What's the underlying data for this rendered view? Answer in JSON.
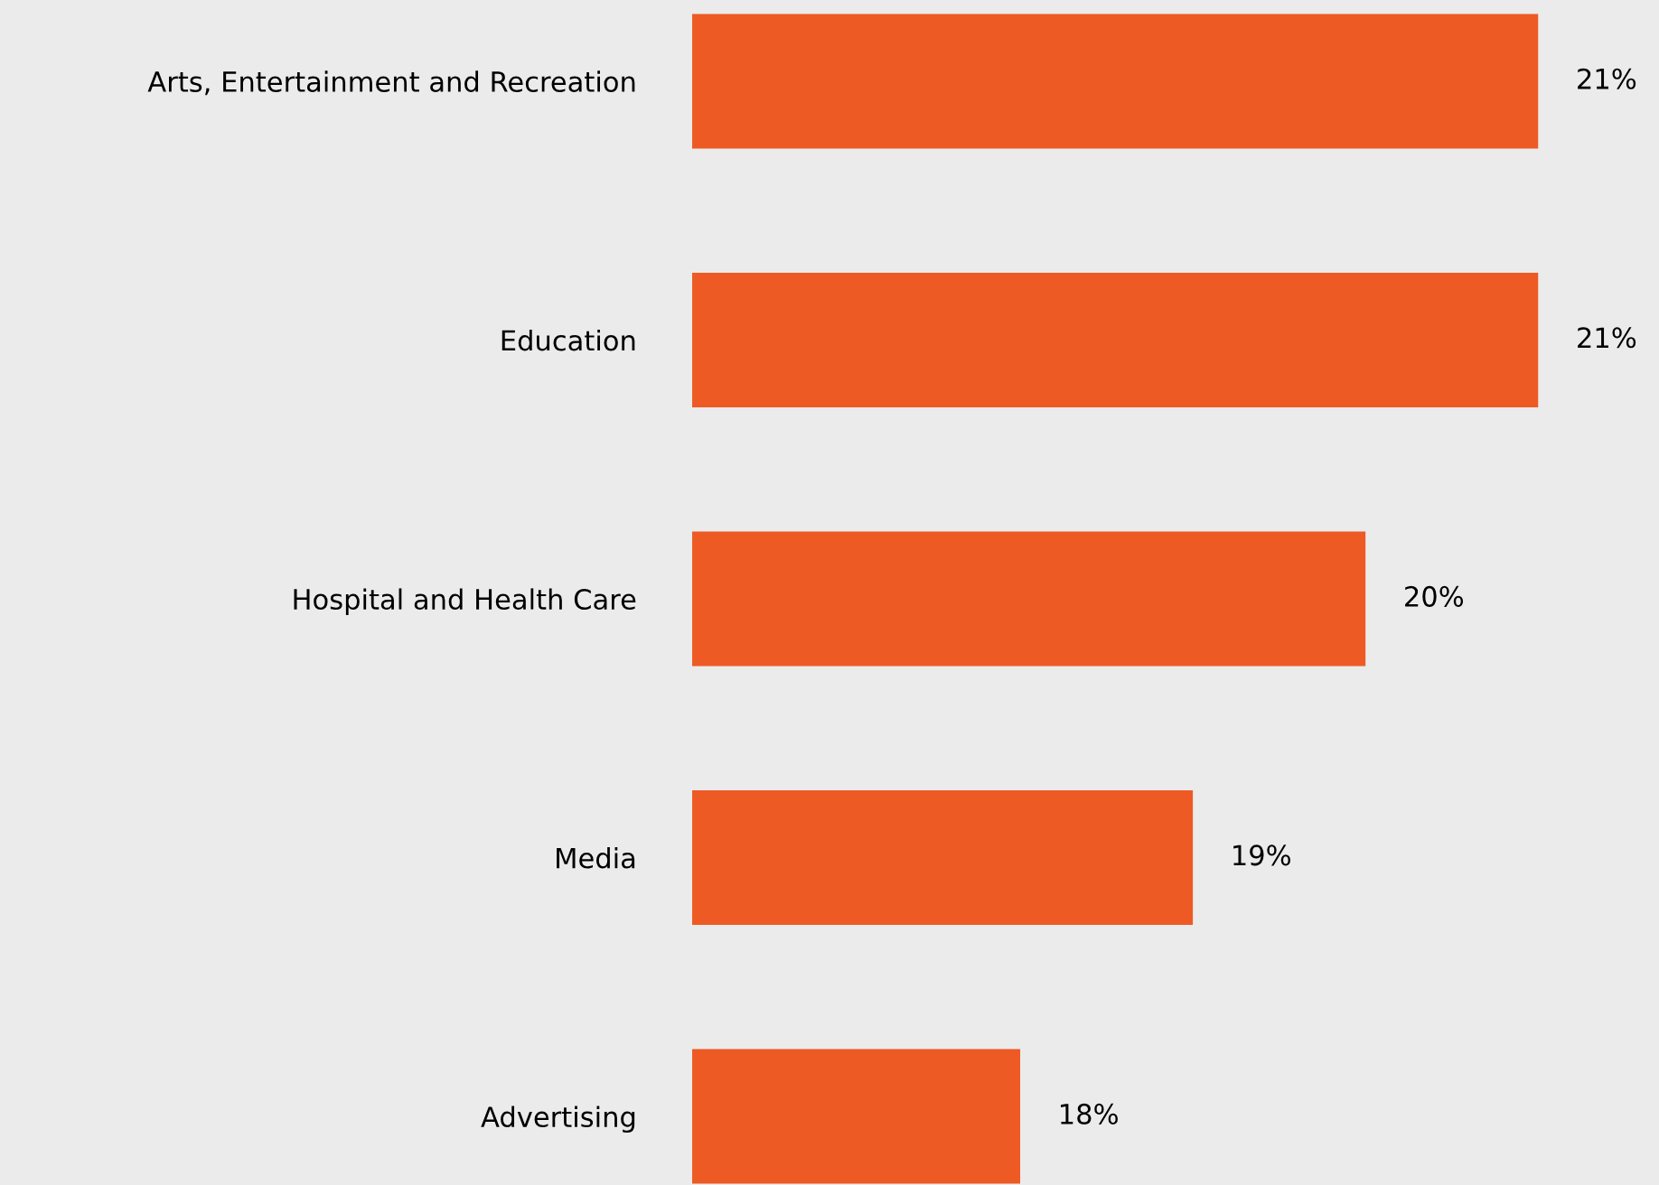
{
  "chart_data": {
    "type": "bar",
    "orientation": "horizontal",
    "categories": [
      "Arts, Entertainment and Recreation",
      "Education",
      "Hospital and Health Care",
      "Media",
      "Advertising"
    ],
    "values": [
      21,
      21,
      20,
      19,
      18
    ],
    "value_labels": [
      "21%",
      "21%",
      "20%",
      "19%",
      "18%"
    ],
    "color": "#ee5a24",
    "xlim": [
      16.1,
      21.7
    ],
    "tick_labels": "y",
    "grid": false,
    "legend": false
  }
}
